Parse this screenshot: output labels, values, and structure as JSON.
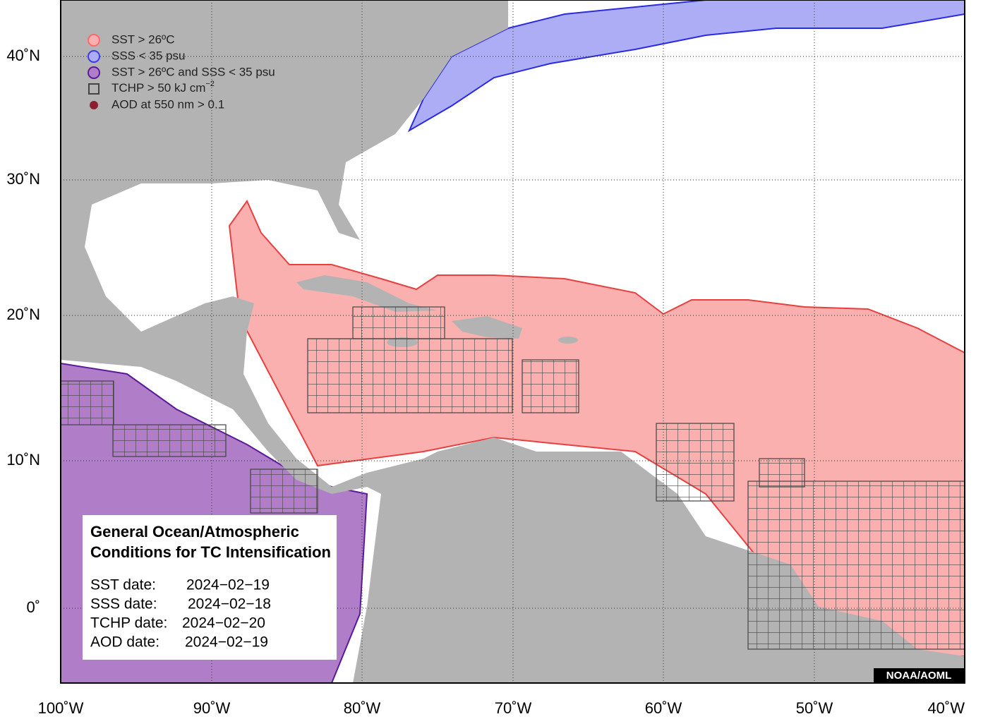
{
  "legend": {
    "items": [
      {
        "label": "SST > 26ºC"
      },
      {
        "label": "SSS < 35 psu"
      },
      {
        "label": "SST > 26ºC and SSS < 35 psu"
      },
      {
        "label": "TCHP > 50 kJ cm",
        "superscript": "−2"
      },
      {
        "label": "AOD at 550 nm > 0.1"
      }
    ]
  },
  "info_box": {
    "title": [
      "General Ocean/Atmospheric",
      "Conditions for TC Intensification"
    ],
    "dates": [
      {
        "label": "SST date:",
        "value": "2024−02−19"
      },
      {
        "label": "SSS date:",
        "value": "2024−02−18"
      },
      {
        "label": "TCHP date:",
        "value": "2024−02−20"
      },
      {
        "label": "AOD date:",
        "value": "2024−02−19"
      }
    ]
  },
  "credit": "NOAA/AOML",
  "axes": {
    "x_labels": [
      "100˚W",
      "90˚W",
      "80˚W",
      "70˚W",
      "60˚W",
      "50˚W",
      "40˚W"
    ],
    "y_labels": [
      "40˚N",
      "30˚N",
      "20˚N",
      "10˚N",
      "0˚"
    ]
  }
}
